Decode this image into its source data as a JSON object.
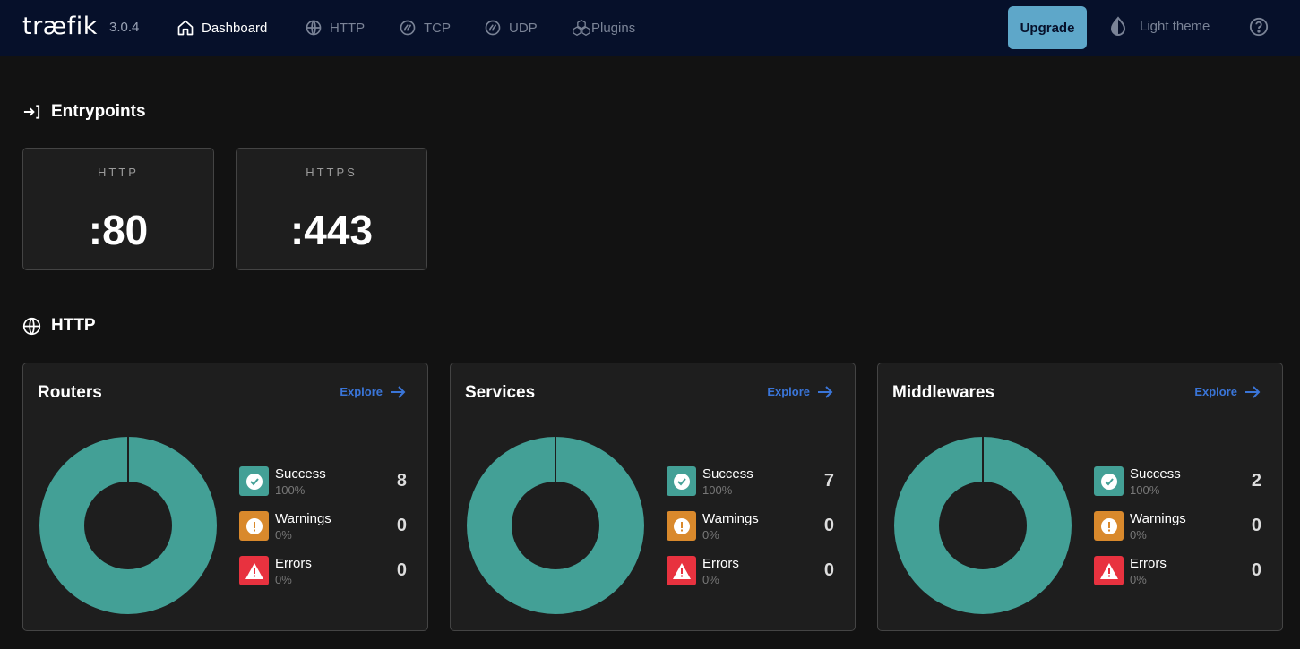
{
  "app": {
    "logo": "træfik",
    "version": "3.0.4"
  },
  "nav": [
    {
      "label": "Dashboard",
      "icon": "home-icon",
      "active": true
    },
    {
      "label": "HTTP",
      "icon": "globe-icon",
      "active": false
    },
    {
      "label": "TCP",
      "icon": "tcp-icon",
      "active": false
    },
    {
      "label": "UDP",
      "icon": "udp-icon",
      "active": false
    },
    {
      "label": "Plugins",
      "icon": "plugins-icon",
      "active": false
    }
  ],
  "header": {
    "upgrade_label": "Upgrade",
    "theme_label": "Light theme"
  },
  "entrypoints": {
    "title": "Entrypoints",
    "items": [
      {
        "name": "HTTP",
        "port": ":80"
      },
      {
        "name": "HTTPS",
        "port": ":443"
      }
    ]
  },
  "http": {
    "title": "HTTP",
    "explore_label": "Explore",
    "cards": [
      {
        "title": "Routers",
        "success": {
          "label": "Success",
          "pct": "100%",
          "count": "8"
        },
        "warnings": {
          "label": "Warnings",
          "pct": "0%",
          "count": "0"
        },
        "errors": {
          "label": "Errors",
          "pct": "0%",
          "count": "0"
        }
      },
      {
        "title": "Services",
        "success": {
          "label": "Success",
          "pct": "100%",
          "count": "7"
        },
        "warnings": {
          "label": "Warnings",
          "pct": "0%",
          "count": "0"
        },
        "errors": {
          "label": "Errors",
          "pct": "0%",
          "count": "0"
        }
      },
      {
        "title": "Middlewares",
        "success": {
          "label": "Success",
          "pct": "100%",
          "count": "2"
        },
        "warnings": {
          "label": "Warnings",
          "pct": "0%",
          "count": "0"
        },
        "errors": {
          "label": "Errors",
          "pct": "0%",
          "count": "0"
        }
      }
    ]
  },
  "colors": {
    "success": "#43a096",
    "warning": "#d9892c",
    "error": "#e8323f",
    "accent": "#3a75d8",
    "upgrade": "#5ea7c9",
    "topbar": "#06102a"
  }
}
